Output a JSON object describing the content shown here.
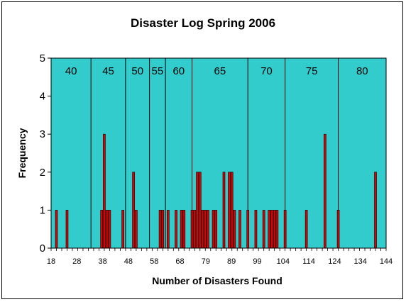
{
  "chart_data": {
    "type": "bar",
    "title": "Disaster Log Spring 2006",
    "xlabel": "Number of Disasters Found",
    "ylabel": "Frequency",
    "xlim": [
      18,
      144
    ],
    "ylim": [
      0,
      5
    ],
    "yticks": [
      "0",
      "1",
      "2",
      "3",
      "4",
      "5"
    ],
    "xticks": [
      "18",
      "28",
      "38",
      "48",
      "58",
      "68",
      "79",
      "89",
      "99",
      "104",
      "114",
      "124",
      "134",
      "144"
    ],
    "grid": false,
    "colors": {
      "plot_background": "#33CCCC",
      "bar_fill": "#E00000",
      "bar_stroke": "#000000"
    },
    "series": [
      {
        "x": [
          20,
          24,
          37,
          38,
          39,
          40,
          45,
          49,
          50,
          59,
          60,
          62,
          65,
          67,
          68,
          71,
          72,
          73,
          74,
          75,
          76,
          77,
          79,
          80,
          83,
          85,
          86,
          87,
          89,
          92,
          95,
          98,
          100,
          101,
          102,
          103,
          106,
          114,
          121,
          126,
          140
        ],
        "values": [
          1,
          1,
          1,
          3,
          1,
          1,
          1,
          2,
          1,
          1,
          1,
          1,
          1,
          1,
          1,
          1,
          1,
          2,
          2,
          1,
          1,
          1,
          1,
          1,
          2,
          2,
          2,
          1,
          1,
          1,
          1,
          1,
          1,
          1,
          1,
          1,
          1,
          1,
          3,
          1,
          2
        ]
      }
    ],
    "grade_bands": [
      {
        "label": "40",
        "from": 18,
        "to": 33
      },
      {
        "label": "45",
        "from": 33,
        "to": 46
      },
      {
        "label": "50",
        "from": 46,
        "to": 55
      },
      {
        "label": "55",
        "from": 55,
        "to": 61
      },
      {
        "label": "60",
        "from": 61,
        "to": 71
      },
      {
        "label": "65",
        "from": 71,
        "to": 92
      },
      {
        "label": "70",
        "from": 92,
        "to": 106
      },
      {
        "label": "75",
        "from": 106,
        "to": 126
      },
      {
        "label": "80",
        "from": 126,
        "to": 144
      }
    ]
  }
}
